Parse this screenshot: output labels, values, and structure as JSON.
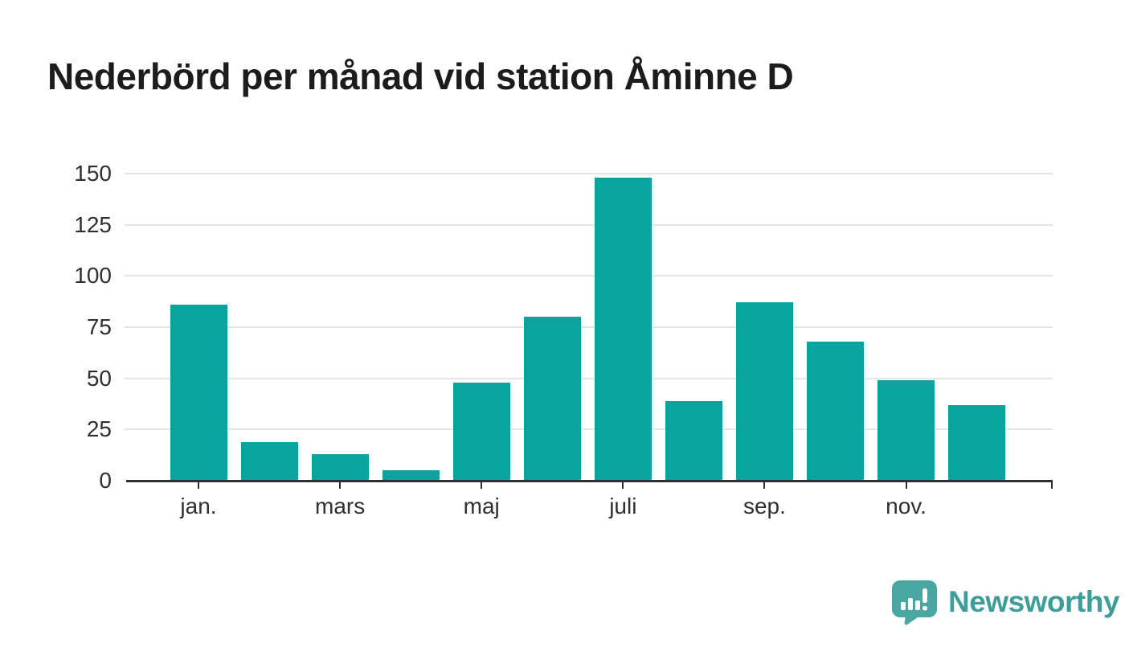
{
  "title": "Nederbörd per månad vid station Åminne D",
  "colors": {
    "bar": "#0aa39d",
    "gridline": "#e4e4e4",
    "axis": "#2f2f2f",
    "title_text": "#1c1c1a",
    "logo_icon": "#4aa6a0",
    "logo_text": "#3f9d97",
    "background": "#ffffff"
  },
  "chart_data": {
    "type": "bar",
    "x": [
      1,
      2,
      3,
      4,
      5,
      6,
      7,
      8,
      9,
      10,
      11,
      12
    ],
    "values": [
      86,
      19,
      13,
      5,
      48,
      80,
      148,
      39,
      87,
      68,
      49,
      37
    ],
    "title": "Nederbörd per månad vid station Åminne D",
    "xlabel": "",
    "ylabel": "",
    "ylim": [
      0,
      150
    ],
    "y_ticks": [
      0,
      25,
      50,
      75,
      100,
      125,
      150
    ],
    "x_tick_labels": [
      "jan.",
      "mars",
      "maj",
      "juli",
      "sep.",
      "nov."
    ],
    "x_tick_indices": [
      0,
      2,
      4,
      6,
      8,
      10
    ],
    "grid": "horizontal-only",
    "legend": "none",
    "bar_color": "#0aa39d"
  },
  "logo": {
    "label": "Newsworthy",
    "icon": "newsworthy-speech-bubble-barchart-icon"
  }
}
